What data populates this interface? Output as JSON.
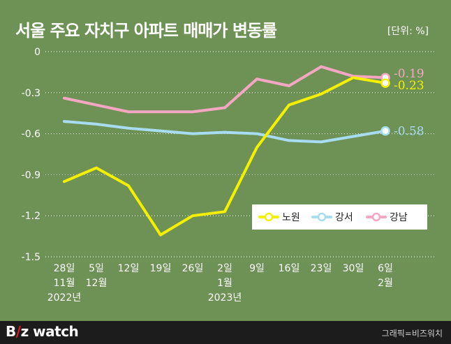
{
  "title": "서울 주요 자치구 아파트 매매가 변동률",
  "unit": "[단위: %]",
  "footer": {
    "brand_pre": "B",
    "brand_slash": "/",
    "brand_post": "z watch",
    "credit": "그래픽=비즈워치"
  },
  "colors": {
    "background": "#6e9256",
    "nowon": "#f5f000",
    "gangseo": "#a8dcf0",
    "gangnam": "#f4a6c3"
  },
  "chart_data": {
    "type": "line",
    "categories": [
      [
        "28일",
        "11월",
        "2022년"
      ],
      [
        "5일",
        "12월"
      ],
      [
        "12일"
      ],
      [
        "19일"
      ],
      [
        "26일"
      ],
      [
        "2일",
        "1월",
        "2023년"
      ],
      [
        "9일"
      ],
      [
        "16일"
      ],
      [
        "23일"
      ],
      [
        "30일"
      ],
      [
        "6일",
        "2월"
      ]
    ],
    "yticks": [
      "0",
      "-0.3",
      "-0.6",
      "-0.9",
      "-1.2",
      "-1.5"
    ],
    "ylim": [
      -1.5,
      0
    ],
    "grid": true,
    "legend_position": "bottom-right",
    "series": [
      {
        "name": "노원",
        "color": "#f5f000",
        "end_label": "-0.23",
        "values": [
          -0.95,
          -0.85,
          -0.98,
          -1.34,
          -1.2,
          -1.17,
          -0.7,
          -0.39,
          -0.31,
          -0.19,
          -0.23
        ]
      },
      {
        "name": "강서",
        "color": "#a8dcf0",
        "end_label": "-0.58",
        "values": [
          -0.51,
          -0.53,
          -0.56,
          -0.58,
          -0.6,
          -0.59,
          -0.6,
          -0.65,
          -0.66,
          -0.62,
          -0.58
        ]
      },
      {
        "name": "강남",
        "color": "#f4a6c3",
        "end_label": "-0.19",
        "values": [
          -0.34,
          -0.39,
          -0.44,
          -0.44,
          -0.44,
          -0.41,
          -0.2,
          -0.25,
          -0.11,
          -0.18,
          -0.19
        ]
      }
    ]
  }
}
